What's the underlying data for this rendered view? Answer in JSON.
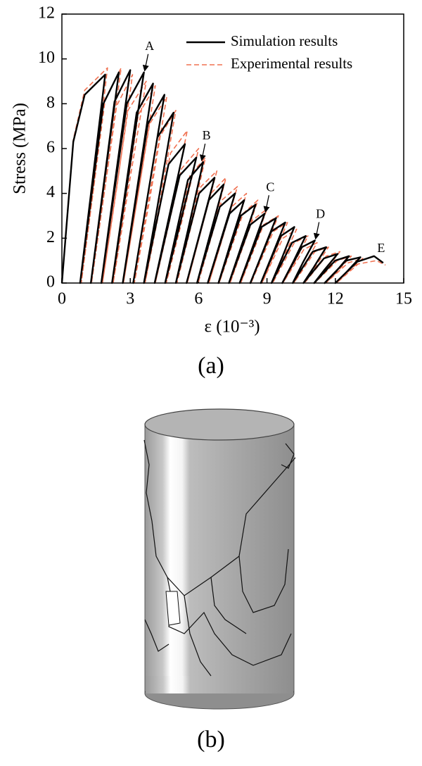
{
  "chart_data": {
    "type": "line",
    "xlabel": "ε (10⁻³)",
    "ylabel": "Stress (MPa)",
    "caption": "(a)",
    "xlim": [
      0,
      15
    ],
    "xticks": [
      0,
      3,
      6,
      9,
      12,
      15
    ],
    "ylim": [
      0,
      12
    ],
    "yticks": [
      0,
      2,
      4,
      6,
      8,
      10,
      12
    ],
    "legend": "upper right",
    "series": [
      {
        "name": "Simulation results",
        "color": "#000000",
        "style": "solid",
        "x": [
          0,
          0.5,
          1.0,
          1.9,
          1.3,
          0.8,
          1.82,
          2.5,
          1.82,
          1.27,
          2.31,
          3.0,
          2.3,
          1.73,
          2.85,
          3.6,
          2.83,
          2.2,
          3.28,
          4.0,
          3.27,
          2.67,
          3.77,
          4.5,
          3.75,
          3.13,
          4.19,
          4.9,
          4.19,
          3.6,
          4.68,
          5.4,
          4.67,
          4.07,
          5.17,
          5.9,
          5.15,
          4.53,
          5.53,
          6.2,
          5.54,
          5.0,
          6.02,
          6.7,
          6.02,
          5.47,
          6.45,
          7.1,
          6.46,
          5.93,
          6.93,
          7.6,
          6.94,
          6.4,
          7.36,
          8.0,
          7.38,
          6.87,
          7.85,
          8.5,
          7.86,
          7.33,
          8.27,
          8.9,
          8.3,
          7.8,
          8.76,
          9.4,
          8.78,
          8.27,
          9.19,
          9.8,
          9.21,
          8.73,
          9.61,
          10.2,
          9.65,
          9.2,
          10.1,
          10.7,
          10.13,
          9.67,
          10.53,
          11.1,
          10.57,
          10.13,
          11.01,
          11.6,
          11.05,
          10.6,
          11.5,
          12.1,
          11.53,
          11.07,
          11.99,
          12.6,
          12.02,
          11.53,
          12.47,
          13.1,
          12.5,
          12.0,
          12.96,
          13.7,
          14.1
        ],
        "values": [
          0,
          6.3,
          8.4,
          9.3,
          4.2,
          0,
          8.0,
          9.4,
          4.2,
          0,
          8.1,
          9.5,
          4.3,
          0,
          8.0,
          9.4,
          4.2,
          0,
          7.6,
          8.9,
          4.0,
          0,
          7.1,
          8.4,
          3.8,
          0,
          6.5,
          7.6,
          3.4,
          0,
          5.3,
          6.2,
          2.8,
          0,
          4.8,
          5.6,
          2.5,
          0,
          4.6,
          5.4,
          2.4,
          0,
          4.0,
          4.7,
          2.1,
          0,
          3.7,
          4.4,
          2.0,
          0,
          3.4,
          4.0,
          1.8,
          0,
          3.1,
          3.7,
          1.7,
          0,
          3.0,
          3.5,
          1.6,
          0,
          2.6,
          3.1,
          1.4,
          0,
          2.5,
          2.9,
          1.3,
          0,
          2.3,
          2.7,
          1.2,
          0,
          2.1,
          2.5,
          1.1,
          0,
          1.8,
          2.1,
          0.9,
          0,
          1.6,
          1.9,
          0.9,
          0,
          1.4,
          1.6,
          0.7,
          0,
          1.1,
          1.3,
          0.6,
          0,
          1.0,
          1.2,
          0.5,
          0,
          1.0,
          1.15,
          0.5,
          0,
          0.95,
          1.2,
          0.9
        ]
      },
      {
        "name": "Experimental results",
        "color": "#f07050",
        "style": "dashed",
        "x": [
          0,
          0.5,
          1.0,
          2.0,
          1.4,
          0.85,
          1.9,
          2.6,
          1.9,
          1.3,
          2.4,
          3.1,
          2.4,
          1.78,
          2.9,
          3.7,
          2.9,
          2.25,
          3.35,
          4.1,
          3.35,
          2.7,
          3.85,
          4.6,
          3.85,
          3.18,
          4.28,
          5.0,
          4.28,
          3.65,
          4.77,
          5.5,
          4.77,
          4.1,
          5.25,
          6.0,
          5.25,
          4.58,
          5.62,
          6.3,
          5.62,
          5.05,
          6.1,
          6.8,
          6.1,
          5.5,
          6.54,
          7.2,
          6.54,
          5.98,
          7.02,
          7.7,
          7.02,
          6.45,
          7.45,
          8.1,
          7.45,
          6.9,
          7.95,
          8.6,
          7.95,
          7.38,
          8.36,
          9.0,
          8.36,
          7.85,
          8.85,
          9.5,
          8.85,
          8.3,
          9.28,
          9.9,
          9.28,
          8.78,
          9.7,
          10.3,
          9.7,
          9.25,
          10.2,
          10.8,
          10.2,
          9.7,
          10.62,
          11.2,
          10.62,
          10.18,
          11.1,
          11.7,
          11.1,
          10.65,
          11.6,
          12.2,
          11.6,
          11.1,
          12.08,
          12.7,
          12.08,
          11.58,
          12.56,
          13.2,
          12.56,
          12.05,
          13.0,
          13.8,
          14.2
        ],
        "values": [
          0,
          6.4,
          8.6,
          9.6,
          4.3,
          0,
          8.2,
          9.6,
          4.3,
          0,
          7.9,
          9.3,
          4.2,
          0,
          7.7,
          9.0,
          4.1,
          0,
          7.5,
          8.8,
          4.0,
          0,
          7.1,
          8.3,
          3.7,
          0,
          6.5,
          7.7,
          3.5,
          0,
          5.8,
          6.8,
          3.1,
          0,
          5.1,
          6.0,
          2.7,
          0,
          4.8,
          5.6,
          2.5,
          0,
          4.3,
          5.0,
          2.3,
          0,
          4.0,
          4.7,
          2.1,
          0,
          3.7,
          4.3,
          1.9,
          0,
          3.4,
          4.0,
          1.8,
          0,
          3.1,
          3.7,
          1.7,
          0,
          2.8,
          3.3,
          1.5,
          0,
          2.6,
          3.0,
          1.4,
          0,
          2.3,
          2.7,
          1.2,
          0,
          2.0,
          2.4,
          1.1,
          0,
          1.8,
          2.1,
          0.9,
          0,
          1.5,
          1.8,
          0.8,
          0,
          1.4,
          1.6,
          0.7,
          0,
          1.2,
          1.4,
          0.6,
          0,
          1.0,
          1.2,
          0.5,
          0,
          0.9,
          1.1,
          0.5,
          0,
          0.85,
          1.0,
          0.8
        ]
      }
    ],
    "annotations": [
      {
        "text": "A",
        "x": 3.6,
        "y": 9.4,
        "arrow": true
      },
      {
        "text": "B",
        "x": 6.1,
        "y": 5.4,
        "arrow": true
      },
      {
        "text": "C",
        "x": 8.9,
        "y": 3.1,
        "arrow": true
      },
      {
        "text": "D",
        "x": 11.1,
        "y": 1.9,
        "arrow": true
      },
      {
        "text": "E",
        "x": 13.7,
        "y": 1.2,
        "arrow": false
      }
    ]
  },
  "figure_b": {
    "caption": "(b)"
  }
}
